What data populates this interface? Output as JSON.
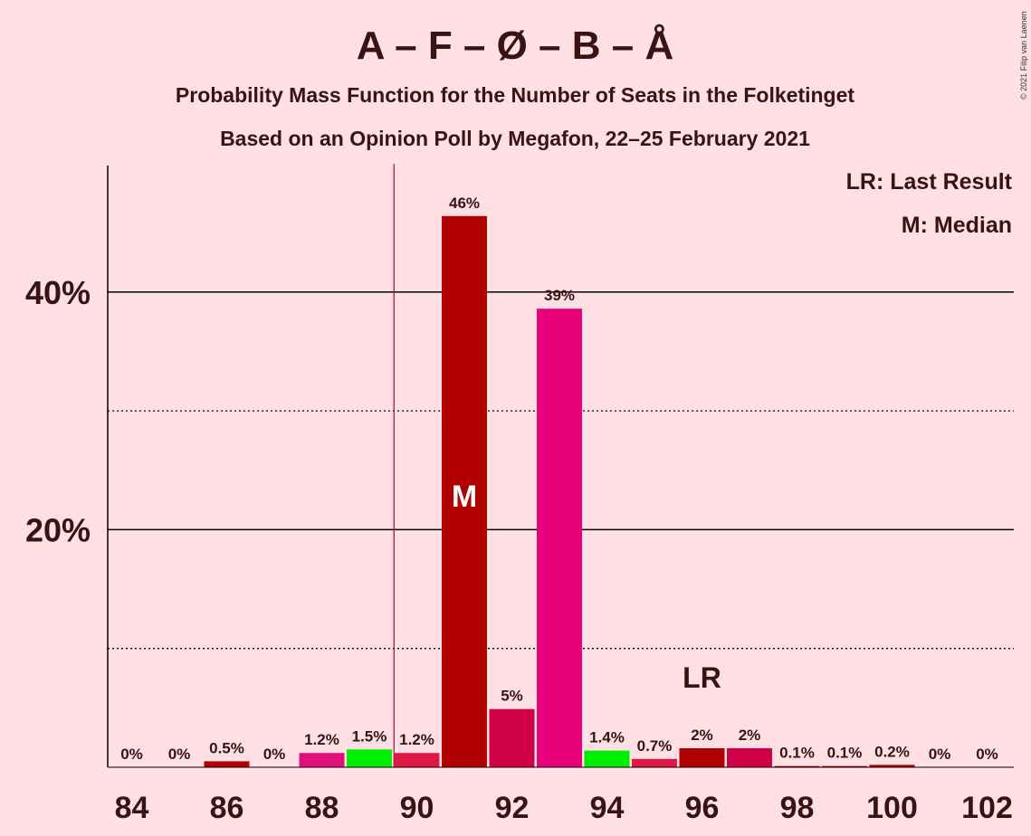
{
  "chart_data": {
    "type": "bar",
    "title": "A – F – Ø – B – Å",
    "subtitle_1": "Probability Mass Function for the Number of Seats in the Folketinget",
    "subtitle_2": "Based on an Opinion Poll by Megafon, 22–25 February 2021",
    "copyright": "© 2021 Filip van Laenen",
    "legend": {
      "lr": "LR: Last Result",
      "m": "M: Median",
      "placement": "top-right"
    },
    "xlabel": "",
    "ylabel": "",
    "ylim": [
      0,
      50
    ],
    "y_ticks": [
      {
        "value": 20,
        "label": "20%"
      },
      {
        "value": 40,
        "label": "40%"
      }
    ],
    "y_minor_gridlines": [
      10,
      30
    ],
    "x_ticks": [
      84,
      86,
      88,
      90,
      92,
      94,
      96,
      98,
      100,
      102
    ],
    "categories": [
      84,
      85,
      86,
      87,
      88,
      89,
      90,
      91,
      92,
      93,
      94,
      95,
      96,
      97,
      98,
      99,
      100,
      101,
      102
    ],
    "values": [
      0,
      0,
      0.5,
      0,
      1.2,
      1.5,
      1.2,
      46.4,
      4.9,
      38.6,
      1.4,
      0.7,
      1.6,
      1.6,
      0.1,
      0.1,
      0.2,
      0,
      0
    ],
    "labels": [
      "0%",
      "0%",
      "0.5%",
      "0%",
      "1.2%",
      "1.5%",
      "1.2%",
      "46%",
      "5%",
      "39%",
      "1.4%",
      "0.7%",
      "2%",
      "2%",
      "0.1%",
      "0.1%",
      "0.2%",
      "0%",
      "0%"
    ],
    "bar_colors": [
      "#B00000",
      "#E8007B",
      "#B00000",
      "#E8007B",
      "#E0107A",
      "#00EE00",
      "#E01848",
      "#B00000",
      "#D00048",
      "#E8007B",
      "#00EE00",
      "#E01848",
      "#B00000",
      "#D00048",
      "#B00000",
      "#B00000",
      "#B00000",
      "#B00000",
      "#B00000"
    ],
    "median_seats": 91,
    "median_label": "M",
    "last_result_seats": 96,
    "last_result_label": "LR",
    "majority_line_seats": 90,
    "colors": {
      "background": "#FFE0E4",
      "text": "#3A1212",
      "majority_line": "#B00048"
    }
  }
}
